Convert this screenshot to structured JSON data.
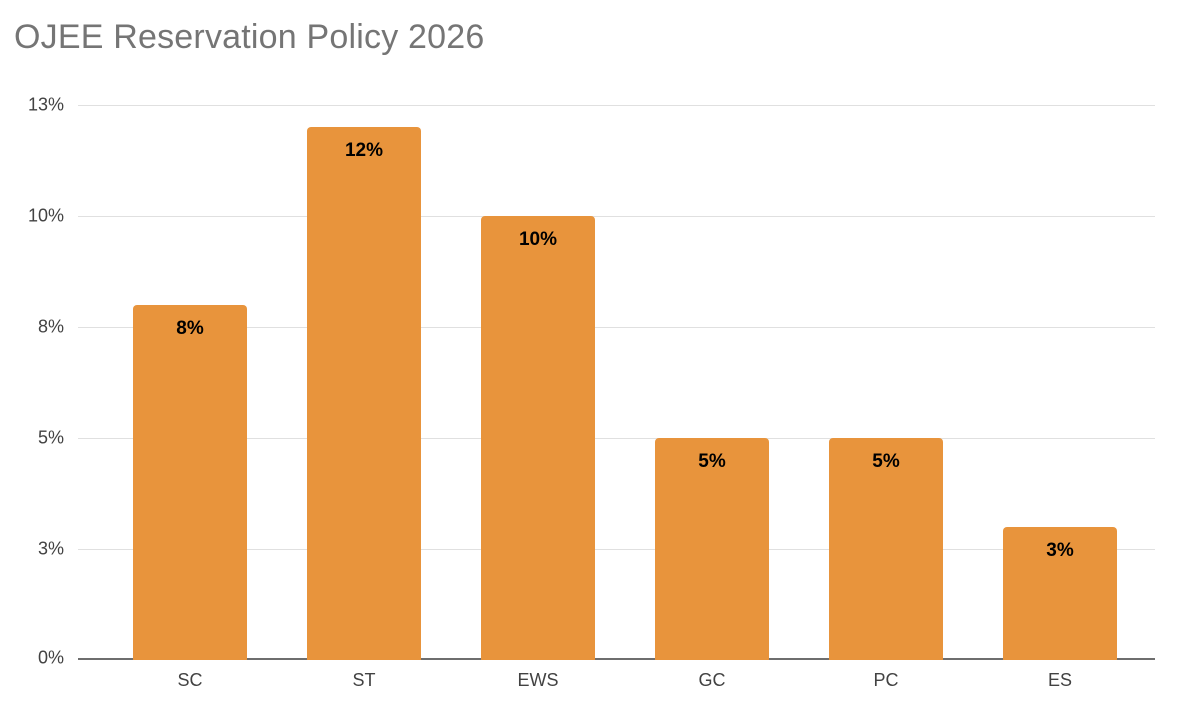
{
  "chart_data": {
    "type": "bar",
    "title": "OJEE Reservation Policy 2026",
    "categories": [
      "SC",
      "ST",
      "EWS",
      "GC",
      "PC",
      "ES"
    ],
    "values": [
      8,
      12,
      10,
      5,
      5,
      3
    ],
    "data_labels": [
      "8%",
      "12%",
      "10%",
      "5%",
      "5%",
      "3%"
    ],
    "xlabel": "",
    "ylabel": "",
    "y_axis": {
      "tick_labels": [
        "0%",
        "3%",
        "5%",
        "8%",
        "10%",
        "13%"
      ],
      "tick_values": [
        0,
        2.5,
        5,
        7.5,
        10,
        12.5
      ],
      "ylim": [
        0,
        12.5
      ]
    },
    "grid": true,
    "legend": "none",
    "colors": {
      "bar": "#E8943C",
      "gridline": "#E0E0E0",
      "axis_line": "#6E6E6E",
      "title_text": "#757575",
      "axis_label_text": "#424242",
      "data_label_text": "#000000",
      "background": "#FFFFFF"
    }
  }
}
